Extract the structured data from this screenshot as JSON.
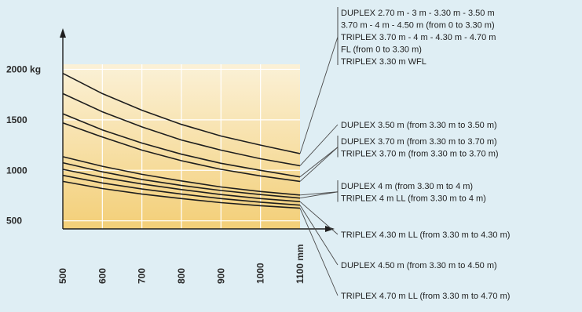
{
  "colors": {
    "background": "#dfeef4",
    "plot_top": "#fbf1d7",
    "plot_bottom": "#f3cf78",
    "grid": "#ffffff",
    "line": "#1e1e1e",
    "leader": "#4a4a4a"
  },
  "chart_data": {
    "type": "line",
    "title": "",
    "xlabel": "",
    "ylabel": "",
    "x": [
      500,
      600,
      700,
      800,
      900,
      1000,
      1100
    ],
    "x_tick_labels": [
      "500",
      "600",
      "700",
      "800",
      "900",
      "1000",
      "1100 mm"
    ],
    "y_tick_labels": [
      {
        "value": 2000,
        "label": "2000 kg"
      },
      {
        "value": 1500,
        "label": "1500"
      },
      {
        "value": 1000,
        "label": "1000"
      },
      {
        "value": 500,
        "label": "500"
      }
    ],
    "xlim": [
      500,
      1100
    ],
    "ylim": [
      420,
      2050
    ],
    "grid": true,
    "series": [
      {
        "values": [
          1960,
          1760,
          1595,
          1455,
          1340,
          1250,
          1165
        ],
        "leader_to": 0
      },
      {
        "values": [
          1760,
          1580,
          1430,
          1300,
          1200,
          1115,
          1045
        ],
        "leader_to": 1
      },
      {
        "values": [
          1560,
          1400,
          1270,
          1160,
          1070,
          1000,
          935
        ],
        "leader_to": 2
      },
      {
        "values": [
          1470,
          1330,
          1200,
          1095,
          1010,
          945,
          890
        ],
        "leader_to": 2
      },
      {
        "values": [
          1135,
          1040,
          960,
          895,
          835,
          790,
          755
        ],
        "leader_to": 3
      },
      {
        "values": [
          1075,
          985,
          910,
          850,
          800,
          760,
          725
        ],
        "leader_to": 3
      },
      {
        "values": [
          1010,
          930,
          865,
          810,
          760,
          720,
          690
        ],
        "leader_to": 4
      },
      {
        "values": [
          950,
          875,
          815,
          765,
          720,
          685,
          655
        ],
        "leader_to": 5
      },
      {
        "values": [
          890,
          820,
          765,
          720,
          680,
          650,
          625
        ],
        "leader_to": 6
      }
    ],
    "legend": [
      [
        "DUPLEX 2.70 m - 3 m - 3.30 m - 3.50 m",
        "3.70 m - 4 m - 4.50 m (from 0 to 3.30 m)",
        "TRIPLEX 3.70 m - 4 m - 4.30 m - 4.70 m",
        "FL (from 0 to 3.30 m)",
        "TRIPLEX 3.30 m WFL"
      ],
      [
        "DUPLEX 3.50 m (from 3.30 m to 3.50 m)"
      ],
      [
        "DUPLEX 3.70 m (from 3.30 m to 3.70 m)",
        "TRIPLEX 3.70 m (from 3.30 m to 3.70 m)"
      ],
      [
        "DUPLEX 4 m (from 3.30 m to 4 m)",
        "TRIPLEX 4 m LL (from 3.30 m to 4 m)"
      ],
      [
        "TRIPLEX 4.30 m LL (from 3.30 m to 4.30 m)"
      ],
      [
        "DUPLEX 4.50 m (from 3.30 m to 4.50 m)"
      ],
      [
        "TRIPLEX 4.70 m LL (from 3.30 m to 4.70 m)"
      ]
    ]
  }
}
